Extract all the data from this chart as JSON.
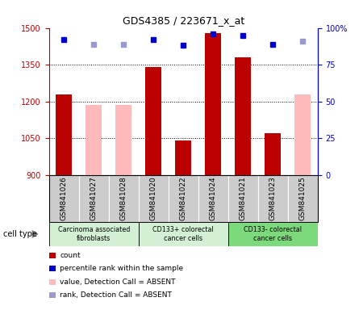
{
  "title": "GDS4385 / 223671_x_at",
  "samples": [
    "GSM841026",
    "GSM841027",
    "GSM841028",
    "GSM841020",
    "GSM841022",
    "GSM841024",
    "GSM841021",
    "GSM841023",
    "GSM841025"
  ],
  "count_values": [
    1230,
    null,
    null,
    1340,
    1040,
    1480,
    1380,
    1070,
    null
  ],
  "absent_value_values": [
    null,
    1185,
    1185,
    null,
    null,
    null,
    null,
    null,
    1230
  ],
  "rank_values": [
    92,
    null,
    null,
    92,
    88,
    96,
    95,
    89,
    null
  ],
  "absent_rank_values": [
    null,
    89,
    89,
    null,
    null,
    null,
    null,
    null,
    91
  ],
  "ylim_left": [
    900,
    1500
  ],
  "ylim_right": [
    0,
    100
  ],
  "yticks_left": [
    900,
    1050,
    1200,
    1350,
    1500
  ],
  "yticks_right": [
    0,
    25,
    50,
    75,
    100
  ],
  "ytick_labels_right": [
    "0",
    "25",
    "50",
    "75",
    "100%"
  ],
  "groups": [
    {
      "label": "Carcinoma associated\nfibroblasts",
      "start": 0,
      "end": 3,
      "color": "#d4f0d4"
    },
    {
      "label": "CD133+ colorectal\ncancer cells",
      "start": 3,
      "end": 6,
      "color": "#d4f0d4"
    },
    {
      "label": "CD133- colorectal\ncancer cells",
      "start": 6,
      "end": 9,
      "color": "#7cda7c"
    }
  ],
  "bar_width": 0.55,
  "count_color": "#bb0000",
  "absent_value_color": "#ffbbbb",
  "rank_color": "#0000cc",
  "absent_rank_color": "#9999cc",
  "grid_color": "black",
  "sample_bg_color": "#cccccc",
  "cell_type_label": "cell type",
  "legend_items": [
    {
      "color": "#bb0000",
      "label": "count"
    },
    {
      "color": "#0000cc",
      "label": "percentile rank within the sample"
    },
    {
      "color": "#ffbbbb",
      "label": "value, Detection Call = ABSENT"
    },
    {
      "color": "#9999cc",
      "label": "rank, Detection Call = ABSENT"
    }
  ]
}
